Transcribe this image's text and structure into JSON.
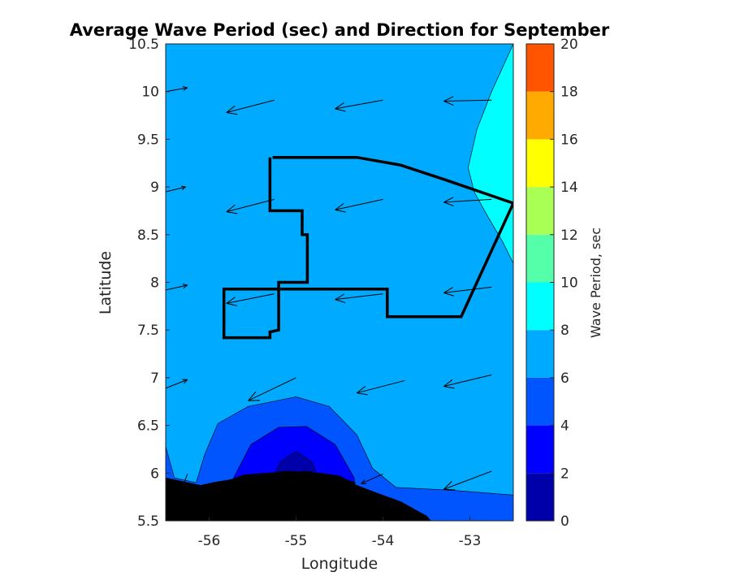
{
  "chart_data": {
    "type": "contour",
    "title": "Average Wave Period (sec) and Direction for September",
    "xlabel": "Longitude",
    "ylabel": "Latitude",
    "xlim": [
      -56.5,
      -52.5
    ],
    "ylim": [
      5.5,
      10.5
    ],
    "xticks": [
      -56,
      -55,
      -54,
      -53
    ],
    "yticks": [
      5.5,
      6,
      6.5,
      7,
      7.5,
      8,
      8.5,
      9,
      9.5,
      10,
      10.5
    ],
    "colorbar": {
      "label": "Wave Period, sec",
      "range": [
        0,
        20
      ],
      "ticks": [
        0,
        2,
        4,
        6,
        8,
        10,
        12,
        14,
        16,
        18,
        20
      ],
      "colors": [
        "#0000aa",
        "#0000ff",
        "#0055ff",
        "#00aaff",
        "#00ffff",
        "#55ffaa",
        "#aaff55",
        "#ffff00",
        "#ffaa00",
        "#ff5500"
      ]
    },
    "levels": [
      {
        "range": [
          0,
          2
        ],
        "points": [
          [
            -55.28,
            5.5
          ],
          [
            -55.28,
            5.9
          ],
          [
            -55.18,
            6.12
          ],
          [
            -55.0,
            6.23
          ],
          [
            -54.82,
            6.12
          ],
          [
            -54.72,
            5.9
          ],
          [
            -54.72,
            5.5
          ]
        ]
      },
      {
        "range": [
          2,
          4
        ],
        "points": [
          [
            -55.75,
            5.5
          ],
          [
            -55.72,
            5.95
          ],
          [
            -55.52,
            6.3
          ],
          [
            -55.2,
            6.48
          ],
          [
            -54.88,
            6.49
          ],
          [
            -54.55,
            6.3
          ],
          [
            -54.33,
            5.95
          ],
          [
            -54.3,
            5.5
          ]
        ]
      },
      {
        "range": [
          4,
          6
        ],
        "points": [
          [
            -56.5,
            5.5
          ],
          [
            -56.5,
            6.28
          ],
          [
            -56.4,
            5.95
          ],
          [
            -56.15,
            5.9
          ],
          [
            -56.05,
            6.2
          ],
          [
            -55.9,
            6.52
          ],
          [
            -55.55,
            6.7
          ],
          [
            -55.0,
            6.8
          ],
          [
            -54.62,
            6.7
          ],
          [
            -54.3,
            6.4
          ],
          [
            -54.12,
            6.05
          ],
          [
            -53.85,
            5.85
          ],
          [
            -53.2,
            5.82
          ],
          [
            -52.5,
            5.77
          ],
          [
            -52.5,
            5.5
          ]
        ]
      },
      {
        "range": [
          8,
          10
        ],
        "points": [
          [
            -52.5,
            10.5
          ],
          [
            -52.75,
            10.0
          ],
          [
            -52.92,
            9.6
          ],
          [
            -53.02,
            9.2
          ],
          [
            -52.95,
            8.95
          ],
          [
            -52.8,
            8.7
          ],
          [
            -52.62,
            8.42
          ],
          [
            -52.5,
            8.2
          ]
        ]
      }
    ],
    "land": [
      [
        [
          -56.5,
          5.5
        ],
        [
          -56.5,
          5.95
        ],
        [
          -56.1,
          5.87
        ],
        [
          -55.95,
          5.9
        ],
        [
          -55.75,
          5.93
        ],
        [
          -55.6,
          5.98
        ],
        [
          -55.3,
          6.0
        ],
        [
          -55.1,
          6.02
        ],
        [
          -54.75,
          6.0
        ],
        [
          -54.5,
          5.97
        ],
        [
          -54.3,
          5.87
        ],
        [
          -54.1,
          5.8
        ],
        [
          -53.8,
          5.7
        ],
        [
          -53.6,
          5.6
        ],
        [
          -53.5,
          5.55
        ],
        [
          -53.45,
          5.5
        ]
      ],
      [
        [
          -55.82,
          5.87
        ],
        [
          -55.6,
          5.95
        ],
        [
          -55.3,
          5.97
        ],
        [
          -55.1,
          5.98
        ],
        [
          -54.95,
          5.95
        ],
        [
          -55.3,
          5.86
        ],
        [
          -55.7,
          5.82
        ]
      ],
      [
        [
          -55.2,
          5.97
        ],
        [
          -54.9,
          6.02
        ],
        [
          -54.6,
          5.98
        ],
        [
          -54.32,
          5.9
        ],
        [
          -54.45,
          5.82
        ],
        [
          -54.8,
          5.82
        ],
        [
          -55.1,
          5.85
        ]
      ]
    ],
    "boundary": [
      [
        -55.27,
        9.31
      ],
      [
        -54.3,
        9.31
      ],
      [
        -53.8,
        9.23
      ],
      [
        -53.3,
        9.08
      ],
      [
        -52.5,
        8.83
      ],
      [
        -53.1,
        7.64
      ],
      [
        -53.95,
        7.64
      ],
      [
        -53.95,
        7.93
      ],
      [
        -55.83,
        7.93
      ],
      [
        -55.83,
        7.42
      ],
      [
        -55.3,
        7.42
      ],
      [
        -55.3,
        7.48
      ],
      [
        -55.2,
        7.5
      ],
      [
        -55.2,
        8.0
      ],
      [
        -54.87,
        8.0
      ],
      [
        -54.87,
        8.5
      ],
      [
        -54.93,
        8.5
      ],
      [
        -54.93,
        8.75
      ],
      [
        -55.3,
        8.75
      ],
      [
        -55.3,
        9.31
      ]
    ],
    "vectors": [
      {
        "x": -56.5,
        "y": 10.0,
        "dx": 0.25,
        "dy": 0.04
      },
      {
        "x": -55.25,
        "y": 9.91,
        "dx": -0.55,
        "dy": -0.13
      },
      {
        "x": -54.0,
        "y": 9.91,
        "dx": -0.55,
        "dy": -0.09
      },
      {
        "x": -52.75,
        "y": 9.91,
        "dx": -0.55,
        "dy": -0.01
      },
      {
        "x": -56.5,
        "y": 8.95,
        "dx": 0.23,
        "dy": 0.05
      },
      {
        "x": -55.25,
        "y": 8.87,
        "dx": -0.55,
        "dy": -0.13
      },
      {
        "x": -54.0,
        "y": 8.87,
        "dx": -0.55,
        "dy": -0.11
      },
      {
        "x": -52.75,
        "y": 8.87,
        "dx": -0.55,
        "dy": -0.03
      },
      {
        "x": -56.5,
        "y": 7.92,
        "dx": 0.25,
        "dy": 0.05
      },
      {
        "x": -55.25,
        "y": 7.88,
        "dx": -0.55,
        "dy": -0.1
      },
      {
        "x": -54.0,
        "y": 7.88,
        "dx": -0.55,
        "dy": -0.06
      },
      {
        "x": -52.75,
        "y": 7.95,
        "dx": -0.55,
        "dy": -0.06
      },
      {
        "x": -56.5,
        "y": 6.89,
        "dx": 0.25,
        "dy": 0.09
      },
      {
        "x": -55.0,
        "y": 7.0,
        "dx": -0.55,
        "dy": -0.24
      },
      {
        "x": -53.75,
        "y": 6.97,
        "dx": -0.55,
        "dy": -0.13
      },
      {
        "x": -52.75,
        "y": 7.03,
        "dx": -0.55,
        "dy": -0.12
      },
      {
        "x": -56.25,
        "y": 5.99,
        "dx": -0.05,
        "dy": -0.12
      },
      {
        "x": -55.25,
        "y": 5.95,
        "dx": -0.3,
        "dy": -0.05
      },
      {
        "x": -54.0,
        "y": 5.99,
        "dx": -0.25,
        "dy": -0.1
      },
      {
        "x": -52.75,
        "y": 6.02,
        "dx": -0.55,
        "dy": -0.19
      }
    ]
  }
}
